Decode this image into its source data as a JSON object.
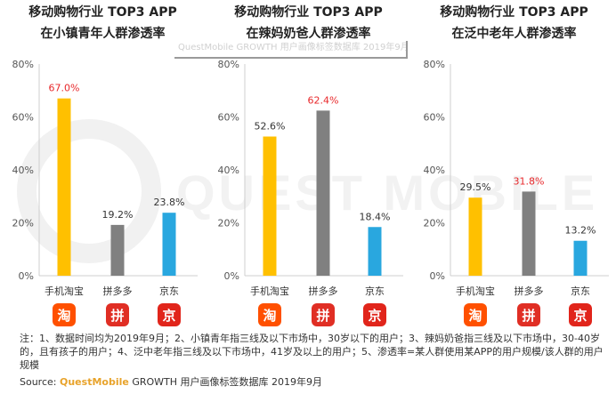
{
  "watermark": "QUEST MOBILE",
  "tooltip_text": "QuestMobile GROWTH 用户画像标签数据库 2019年9月",
  "chart_data": [
    {
      "type": "bar",
      "title": "移动购物行业 TOP3 APP",
      "subtitle": "在小镇青年人群渗透率",
      "categories": [
        "手机淘宝",
        "拼多多",
        "京东"
      ],
      "values": [
        67.0,
        19.2,
        23.8
      ],
      "value_labels": [
        "67.0%",
        "19.2%",
        "23.8%"
      ],
      "highlight_index": 0,
      "ylim": [
        0,
        80
      ],
      "yticks": [
        "0%",
        "20%",
        "40%",
        "60%",
        "80%"
      ],
      "grid": false
    },
    {
      "type": "bar",
      "title": "移动购物行业 TOP3 APP",
      "subtitle": "在辣妈奶爸人群渗透率",
      "categories": [
        "手机淘宝",
        "拼多多",
        "京东"
      ],
      "values": [
        52.6,
        62.4,
        18.4
      ],
      "value_labels": [
        "52.6%",
        "62.4%",
        "18.4%"
      ],
      "highlight_index": 1,
      "ylim": [
        0,
        80
      ],
      "yticks": [
        "0%",
        "20%",
        "40%",
        "60%",
        "80%"
      ],
      "grid": false
    },
    {
      "type": "bar",
      "title": "移动购物行业 TOP3 APP",
      "subtitle": "在泛中老年人群渗透率",
      "categories": [
        "手机淘宝",
        "拼多多",
        "京东"
      ],
      "values": [
        29.5,
        31.8,
        13.2
      ],
      "value_labels": [
        "29.5%",
        "31.8%",
        "13.2%"
      ],
      "highlight_index": 1,
      "ylim": [
        0,
        80
      ],
      "yticks": [
        "0%",
        "20%",
        "40%",
        "60%",
        "80%"
      ],
      "grid": false
    }
  ],
  "colors": {
    "taobao": "#FFC000",
    "pinduoduo": "#808080",
    "jd": "#29A7DF",
    "label_default": "#333333",
    "label_highlight": "#E8282B",
    "axis": "#cfcfcf"
  },
  "icons": [
    {
      "name": "taobao-icon",
      "glyph": "淘"
    },
    {
      "name": "pinduoduo-icon",
      "glyph": "拼"
    },
    {
      "name": "jd-icon",
      "glyph": "京"
    }
  ],
  "footnote": "注：1、数据时间均为2019年9月；2、小镇青年指三线及以下市场中，30岁以下的用户；3、辣妈奶爸指三线及以下市场中，30-40岁的，且有孩子的用户；4、泛中老年指三线及以下市场中，41岁及以上的用户；5、渗透率=某人群使用某APP的用户规模/该人群的用户规模",
  "source": {
    "label": "Source:",
    "brand": "QuestMobile",
    "text": "GROWTH 用户画像标签数据库 2019年9月"
  }
}
